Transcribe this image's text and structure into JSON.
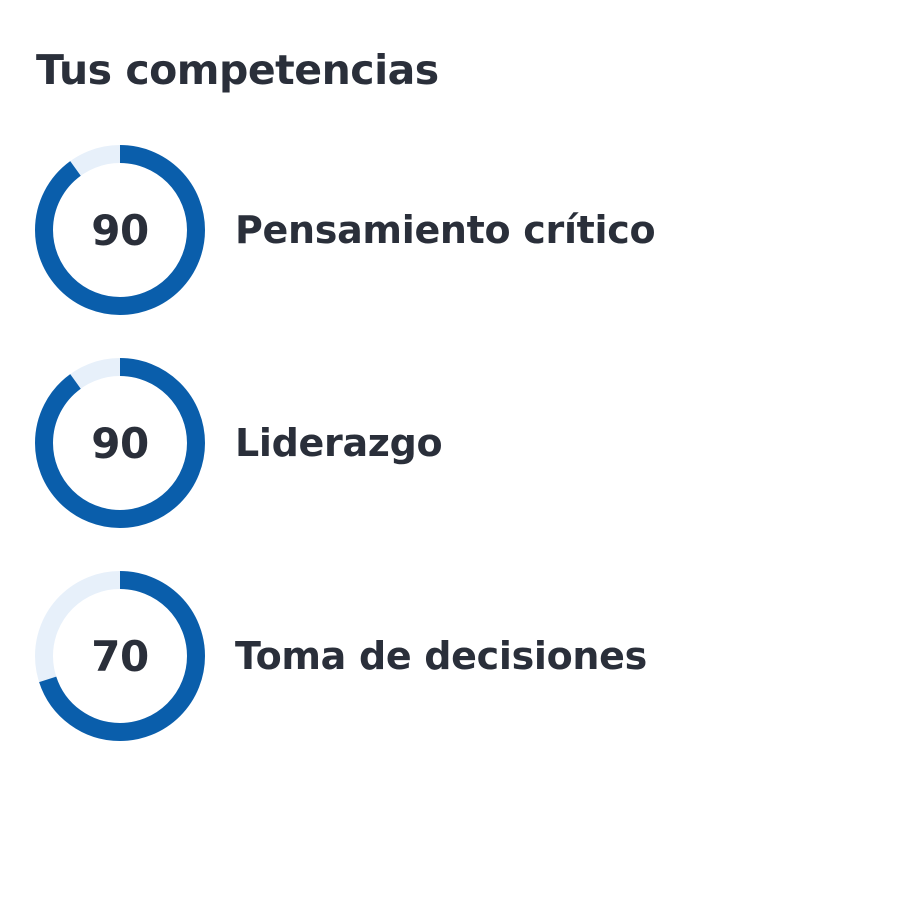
{
  "title": "Tus competencias",
  "colors": {
    "accent": "#0a5eab",
    "track": "#e7f0fa",
    "text": "#2a2f3a"
  },
  "competencies": [
    {
      "label": "Pensamiento crítico",
      "score": "90",
      "progress": 0.9
    },
    {
      "label": "Liderazgo",
      "score": "90",
      "progress": 0.9
    },
    {
      "label": "Toma de decisiones",
      "score": "70",
      "progress": 0.7
    }
  ]
}
